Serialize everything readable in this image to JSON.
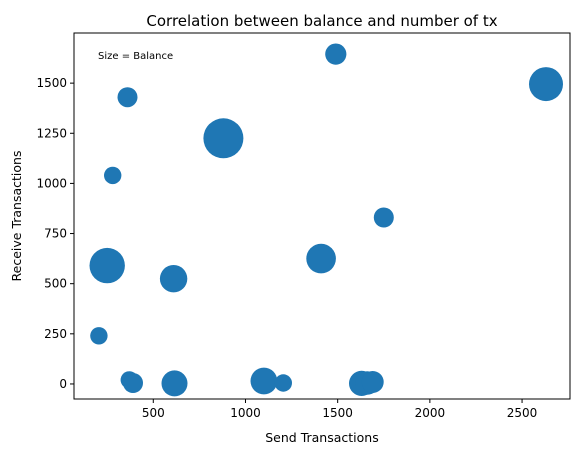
{
  "chart_data": {
    "type": "scatter",
    "title": "Correlation between balance and number of tx",
    "xlabel": "Send Transactions",
    "ylabel": "Receive Transactions",
    "annotation": "Size = Balance",
    "xlim": [
      70,
      2760
    ],
    "ylim": [
      -75,
      1750
    ],
    "xticks": [
      500,
      1000,
      1500,
      2000,
      2500
    ],
    "yticks": [
      0,
      250,
      500,
      750,
      1000,
      1250,
      1500
    ],
    "color": "#1f77b4",
    "grid": false,
    "size_encoding": "balance (relative)",
    "points": [
      {
        "x": 1490,
        "y": 1645,
        "s": 0.28
      },
      {
        "x": 2630,
        "y": 1495,
        "s": 0.72
      },
      {
        "x": 360,
        "y": 1430,
        "s": 0.25
      },
      {
        "x": 880,
        "y": 1225,
        "s": 1.0
      },
      {
        "x": 280,
        "y": 1040,
        "s": 0.19
      },
      {
        "x": 1750,
        "y": 830,
        "s": 0.25
      },
      {
        "x": 1410,
        "y": 625,
        "s": 0.55
      },
      {
        "x": 250,
        "y": 590,
        "s": 0.78
      },
      {
        "x": 610,
        "y": 525,
        "s": 0.47
      },
      {
        "x": 205,
        "y": 240,
        "s": 0.19
      },
      {
        "x": 370,
        "y": 20,
        "s": 0.19
      },
      {
        "x": 390,
        "y": 5,
        "s": 0.25
      },
      {
        "x": 615,
        "y": 3,
        "s": 0.42
      },
      {
        "x": 1100,
        "y": 15,
        "s": 0.45
      },
      {
        "x": 1205,
        "y": 5,
        "s": 0.19
      },
      {
        "x": 1630,
        "y": 3,
        "s": 0.4
      },
      {
        "x": 1660,
        "y": 5,
        "s": 0.35
      },
      {
        "x": 1690,
        "y": 10,
        "s": 0.3
      }
    ]
  }
}
